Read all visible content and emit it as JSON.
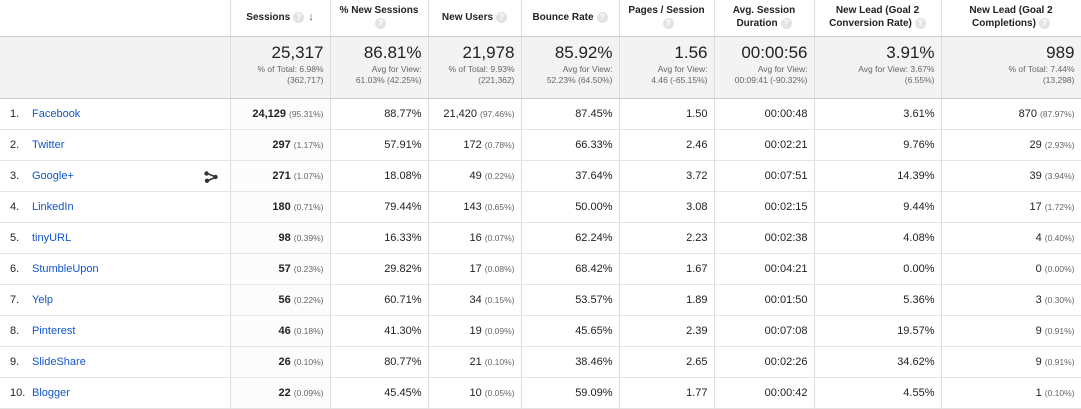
{
  "headers": [
    {
      "label": "",
      "help": false
    },
    {
      "label": "Sessions",
      "help": true,
      "sort": "↓"
    },
    {
      "label": "% New Sessions",
      "help": true
    },
    {
      "label": "New Users",
      "help": true
    },
    {
      "label": "Bounce Rate",
      "help": true
    },
    {
      "label": "Pages / Session",
      "help": true
    },
    {
      "label": "Avg. Session Duration",
      "help": true
    },
    {
      "label": "New Lead (Goal 2 Conversion Rate)",
      "help": true
    },
    {
      "label": "New Lead (Goal 2 Completions)",
      "help": true
    }
  ],
  "help_glyph": "?",
  "totals": [
    {
      "value": "",
      "line1": "",
      "line2": ""
    },
    {
      "value": "25,317",
      "line1": "% of Total: 6.98%",
      "line2": "(362,717)"
    },
    {
      "value": "86.81%",
      "line1": "Avg for View:",
      "line2": "61.03% (42.25%)"
    },
    {
      "value": "21,978",
      "line1": "% of Total: 9.93%",
      "line2": "(221,362)"
    },
    {
      "value": "85.92%",
      "line1": "Avg for View:",
      "line2": "52.23% (64.50%)"
    },
    {
      "value": "1.56",
      "line1": "Avg for View:",
      "line2": "4.46 (-65.15%)"
    },
    {
      "value": "00:00:56",
      "line1": "Avg for View:",
      "line2": "00:09:41 (-90.32%)"
    },
    {
      "value": "3.91%",
      "line1": "Avg for View: 3.67%",
      "line2": "(6.55%)"
    },
    {
      "value": "989",
      "line1": "% of Total: 7.44%",
      "line2": "(13,298)"
    }
  ],
  "rows": [
    {
      "num": "1.",
      "source": "Facebook",
      "sessions": "24,129",
      "sessions_pct": "(95.31%)",
      "new_sessions": "88.77%",
      "new_users": "21,420",
      "new_users_pct": "(97.46%)",
      "bounce": "87.45%",
      "pages": "1.50",
      "duration": "00:00:48",
      "conv_rate": "3.61%",
      "completions": "870",
      "completions_pct": "(87.97%)"
    },
    {
      "num": "2.",
      "source": "Twitter",
      "sessions": "297",
      "sessions_pct": "(1.17%)",
      "new_sessions": "57.91%",
      "new_users": "172",
      "new_users_pct": "(0.78%)",
      "bounce": "66.33%",
      "pages": "2.46",
      "duration": "00:02:21",
      "conv_rate": "9.76%",
      "completions": "29",
      "completions_pct": "(2.93%)"
    },
    {
      "num": "3.",
      "source": "Google+",
      "chart_icon": true,
      "sessions": "271",
      "sessions_pct": "(1.07%)",
      "new_sessions": "18.08%",
      "new_users": "49",
      "new_users_pct": "(0.22%)",
      "bounce": "37.64%",
      "pages": "3.72",
      "duration": "00:07:51",
      "conv_rate": "14.39%",
      "completions": "39",
      "completions_pct": "(3.94%)"
    },
    {
      "num": "4.",
      "source": "LinkedIn",
      "sessions": "180",
      "sessions_pct": "(0.71%)",
      "new_sessions": "79.44%",
      "new_users": "143",
      "new_users_pct": "(0.65%)",
      "bounce": "50.00%",
      "pages": "3.08",
      "duration": "00:02:15",
      "conv_rate": "9.44%",
      "completions": "17",
      "completions_pct": "(1.72%)"
    },
    {
      "num": "5.",
      "source": "tinyURL",
      "sessions": "98",
      "sessions_pct": "(0.39%)",
      "new_sessions": "16.33%",
      "new_users": "16",
      "new_users_pct": "(0.07%)",
      "bounce": "62.24%",
      "pages": "2.23",
      "duration": "00:02:38",
      "conv_rate": "4.08%",
      "completions": "4",
      "completions_pct": "(0.40%)"
    },
    {
      "num": "6.",
      "source": "StumbleUpon",
      "sessions": "57",
      "sessions_pct": "(0.23%)",
      "new_sessions": "29.82%",
      "new_users": "17",
      "new_users_pct": "(0.08%)",
      "bounce": "68.42%",
      "pages": "1.67",
      "duration": "00:04:21",
      "conv_rate": "0.00%",
      "completions": "0",
      "completions_pct": "(0.00%)"
    },
    {
      "num": "7.",
      "source": "Yelp",
      "sessions": "56",
      "sessions_pct": "(0.22%)",
      "new_sessions": "60.71%",
      "new_users": "34",
      "new_users_pct": "(0.15%)",
      "bounce": "53.57%",
      "pages": "1.89",
      "duration": "00:01:50",
      "conv_rate": "5.36%",
      "completions": "3",
      "completions_pct": "(0.30%)"
    },
    {
      "num": "8.",
      "source": "Pinterest",
      "sessions": "46",
      "sessions_pct": "(0.18%)",
      "new_sessions": "41.30%",
      "new_users": "19",
      "new_users_pct": "(0.09%)",
      "bounce": "45.65%",
      "pages": "2.39",
      "duration": "00:07:08",
      "conv_rate": "19.57%",
      "completions": "9",
      "completions_pct": "(0.91%)"
    },
    {
      "num": "9.",
      "source": "SlideShare",
      "sessions": "26",
      "sessions_pct": "(0.10%)",
      "new_sessions": "80.77%",
      "new_users": "21",
      "new_users_pct": "(0.10%)",
      "bounce": "38.46%",
      "pages": "2.65",
      "duration": "00:02:26",
      "conv_rate": "34.62%",
      "completions": "9",
      "completions_pct": "(0.91%)"
    },
    {
      "num": "10.",
      "source": "Blogger",
      "sessions": "22",
      "sessions_pct": "(0.09%)",
      "new_sessions": "45.45%",
      "new_users": "10",
      "new_users_pct": "(0.05%)",
      "bounce": "59.09%",
      "pages": "1.77",
      "duration": "00:00:42",
      "conv_rate": "4.55%",
      "completions": "1",
      "completions_pct": "(0.10%)"
    }
  ]
}
